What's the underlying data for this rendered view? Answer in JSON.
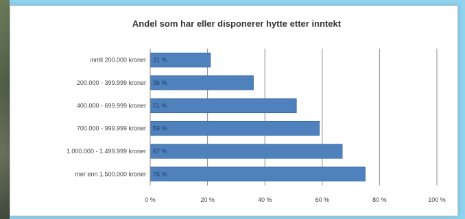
{
  "chart_data": {
    "type": "bar",
    "orientation": "horizontal",
    "title": "Andel som har eller disponerer hytte etter inntekt",
    "xlabel": "",
    "ylabel": "",
    "categories": [
      "inntil 200.000 kroner",
      "200.000 - 399.999 kroner",
      "400.000 - 699.999 kroner",
      "700.000 - 999.999 kroner",
      "1.000.000 - 1.499.999 kroner",
      "mer enn 1.500.000 kroner"
    ],
    "values": [
      21,
      36,
      51,
      59,
      67,
      75
    ],
    "value_labels": [
      "21 %",
      "36 %",
      "51 %",
      "59 %",
      "67 %",
      "75 %"
    ],
    "xlim": [
      0,
      100
    ],
    "ticks": [
      0,
      20,
      40,
      60,
      80,
      100
    ],
    "tick_labels": [
      "0 %",
      "20 %",
      "40 %",
      "60 %",
      "80 %",
      "100 %"
    ],
    "grid": true,
    "bar_color": "#4f81bd"
  }
}
